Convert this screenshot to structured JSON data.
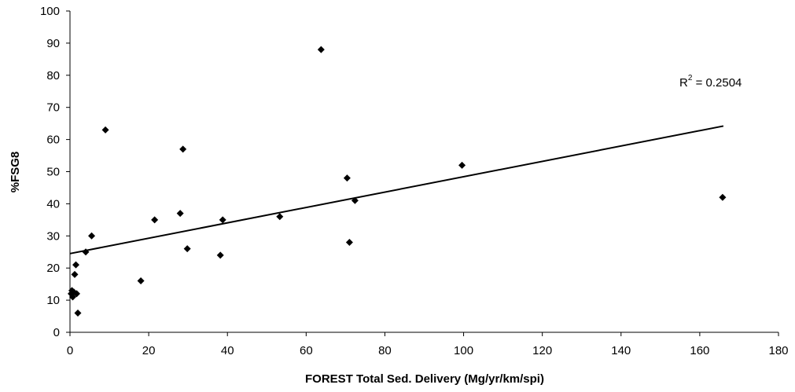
{
  "chart_data": {
    "type": "scatter",
    "title": "",
    "xlabel": "FOREST Total Sed. Delivery (Mg/yr/km/spi)",
    "ylabel": "%FSG8",
    "xlim": [
      0,
      180
    ],
    "ylim": [
      0,
      100
    ],
    "x_ticks": [
      0,
      20,
      40,
      60,
      80,
      100,
      120,
      140,
      160,
      180
    ],
    "y_ticks": [
      0,
      10,
      20,
      30,
      40,
      50,
      60,
      70,
      80,
      90,
      100
    ],
    "grid": false,
    "legend": "none",
    "marker": "diamond",
    "marker_color": "#000000",
    "points": [
      {
        "x": 0.3,
        "y": 12
      },
      {
        "x": 0.5,
        "y": 13
      },
      {
        "x": 0.7,
        "y": 11
      },
      {
        "x": 1.0,
        "y": 12.5
      },
      {
        "x": 1.2,
        "y": 18
      },
      {
        "x": 1.5,
        "y": 21
      },
      {
        "x": 1.7,
        "y": 12
      },
      {
        "x": 2.0,
        "y": 6
      },
      {
        "x": 4.0,
        "y": 25
      },
      {
        "x": 5.5,
        "y": 30
      },
      {
        "x": 9.0,
        "y": 63
      },
      {
        "x": 18.0,
        "y": 16
      },
      {
        "x": 21.5,
        "y": 35
      },
      {
        "x": 28.0,
        "y": 37
      },
      {
        "x": 28.7,
        "y": 57
      },
      {
        "x": 29.8,
        "y": 26
      },
      {
        "x": 38.2,
        "y": 24
      },
      {
        "x": 38.8,
        "y": 35
      },
      {
        "x": 53.3,
        "y": 36
      },
      {
        "x": 63.8,
        "y": 88
      },
      {
        "x": 70.4,
        "y": 48
      },
      {
        "x": 71.0,
        "y": 28
      },
      {
        "x": 72.4,
        "y": 41
      },
      {
        "x": 99.6,
        "y": 52
      },
      {
        "x": 165.8,
        "y": 42
      }
    ],
    "trendline": {
      "type": "linear",
      "x": [
        0,
        166
      ],
      "y": [
        24.5,
        64.2
      ],
      "color": "#000000"
    },
    "annotation": {
      "text": "R",
      "superscript": "2",
      "suffix": " = 0.2504"
    }
  }
}
